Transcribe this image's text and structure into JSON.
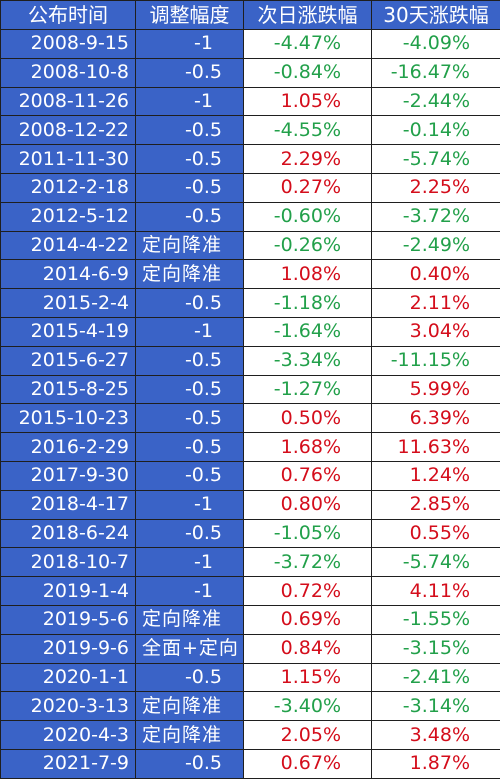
{
  "columns": [
    "公布时间",
    "调整幅度",
    "次日涨跌幅",
    "30天涨跌幅"
  ],
  "rows": [
    {
      "date": "2008-9-15",
      "adjust": "-1",
      "next_day": "-4.47%",
      "day30": "-4.09%"
    },
    {
      "date": "2008-10-8",
      "adjust": "-0.5",
      "next_day": "-0.84%",
      "day30": "-16.47%"
    },
    {
      "date": "2008-11-26",
      "adjust": "-1",
      "next_day": "1.05%",
      "day30": "-2.44%"
    },
    {
      "date": "2008-12-22",
      "adjust": "-0.5",
      "next_day": "-4.55%",
      "day30": "-0.14%"
    },
    {
      "date": "2011-11-30",
      "adjust": "-0.5",
      "next_day": "2.29%",
      "day30": "-5.74%"
    },
    {
      "date": "2012-2-18",
      "adjust": "-0.5",
      "next_day": "0.27%",
      "day30": "2.25%"
    },
    {
      "date": "2012-5-12",
      "adjust": "-0.5",
      "next_day": "-0.60%",
      "day30": "-3.72%"
    },
    {
      "date": "2014-4-22",
      "adjust": "定向降准",
      "next_day": "-0.26%",
      "day30": "-2.49%"
    },
    {
      "date": "2014-6-9",
      "adjust": "定向降准",
      "next_day": "1.08%",
      "day30": "0.40%"
    },
    {
      "date": "2015-2-4",
      "adjust": "-0.5",
      "next_day": "-1.18%",
      "day30": "2.11%"
    },
    {
      "date": "2015-4-19",
      "adjust": "-1",
      "next_day": "-1.64%",
      "day30": "3.04%"
    },
    {
      "date": "2015-6-27",
      "adjust": "-0.5",
      "next_day": "-3.34%",
      "day30": "-11.15%"
    },
    {
      "date": "2015-8-25",
      "adjust": "-0.5",
      "next_day": "-1.27%",
      "day30": "5.99%"
    },
    {
      "date": "2015-10-23",
      "adjust": "-0.5",
      "next_day": "0.50%",
      "day30": "6.39%"
    },
    {
      "date": "2016-2-29",
      "adjust": "-0.5",
      "next_day": "1.68%",
      "day30": "11.63%"
    },
    {
      "date": "2017-9-30",
      "adjust": "-0.5",
      "next_day": "0.76%",
      "day30": "1.24%"
    },
    {
      "date": "2018-4-17",
      "adjust": "-1",
      "next_day": "0.80%",
      "day30": "2.85%"
    },
    {
      "date": "2018-6-24",
      "adjust": "-0.5",
      "next_day": "-1.05%",
      "day30": "0.55%"
    },
    {
      "date": "2018-10-7",
      "adjust": "-1",
      "next_day": "-3.72%",
      "day30": "-5.74%"
    },
    {
      "date": "2019-1-4",
      "adjust": "-1",
      "next_day": "0.72%",
      "day30": "4.11%"
    },
    {
      "date": "2019-5-6",
      "adjust": "定向降准",
      "next_day": "0.69%",
      "day30": "-1.55%"
    },
    {
      "date": "2019-9-6",
      "adjust": "全面+定向",
      "next_day": "0.84%",
      "day30": "-3.15%"
    },
    {
      "date": "2020-1-1",
      "adjust": "-0.5",
      "next_day": "1.15%",
      "day30": "-2.41%"
    },
    {
      "date": "2020-3-13",
      "adjust": "定向降准",
      "next_day": "-3.40%",
      "day30": "-3.14%"
    },
    {
      "date": "2020-4-3",
      "adjust": "定向降准",
      "next_day": "2.05%",
      "day30": "3.48%"
    },
    {
      "date": "2021-7-9",
      "adjust": "-0.5",
      "next_day": "0.67%",
      "day30": "1.87%"
    }
  ],
  "colors": {
    "header_bg": "#3a63c7",
    "negative": "#22a04a",
    "positive": "#d40d1b",
    "grid": "#1f1f1f"
  }
}
